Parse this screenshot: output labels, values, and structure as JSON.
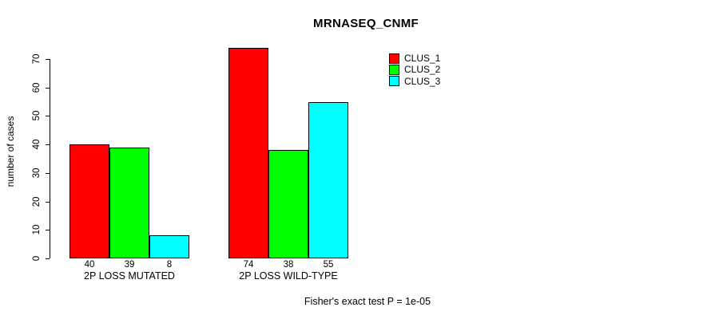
{
  "chart_data": {
    "type": "bar",
    "title": "MRNASEQ_CNMF",
    "ylabel": "number of cases",
    "xlabel": "",
    "ylim": [
      0,
      70
    ],
    "yticks": [
      0,
      10,
      20,
      30,
      40,
      50,
      60,
      70
    ],
    "categories": [
      "2P LOSS MUTATED",
      "2P LOSS WILD-TYPE"
    ],
    "series": [
      {
        "name": "CLUS_1",
        "color": "#FF0000",
        "values": [
          40,
          74
        ]
      },
      {
        "name": "CLUS_2",
        "color": "#00FF00",
        "values": [
          39,
          38
        ]
      },
      {
        "name": "CLUS_3",
        "color": "#00FFFF",
        "values": [
          8,
          55
        ]
      }
    ],
    "bar_value_labels": [
      [
        40,
        39,
        8
      ],
      [
        74,
        38,
        55
      ]
    ],
    "legend_position": "top-right",
    "grid": false,
    "annotation": "Fisher's exact test P = 1e-05"
  }
}
